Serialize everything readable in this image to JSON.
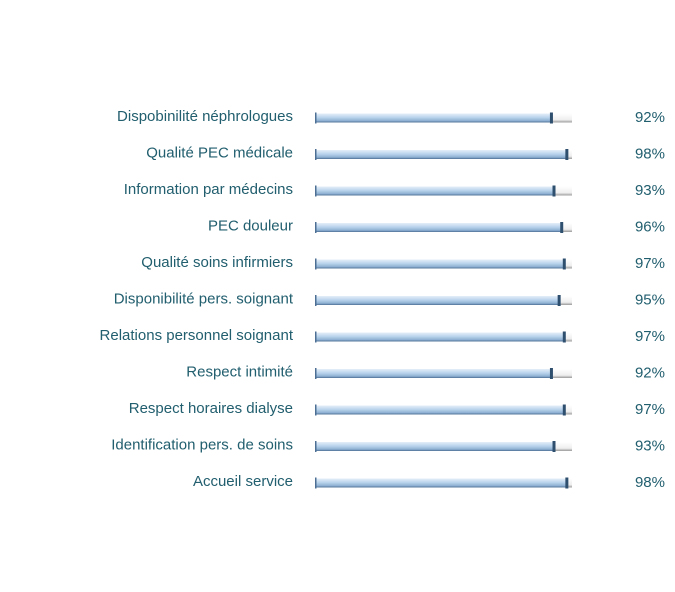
{
  "chart_data": {
    "type": "hbar",
    "categories": [
      "Dispobinilité néphrologues",
      "Qualité PEC médicale",
      "Information par médecins",
      "PEC douleur",
      "Qualité soins infirmiers",
      "Disponibilité pers. soignant",
      "Relations personnel soignant",
      "Respect intimité",
      "Respect horaires dialyse",
      "Identification pers. de soins",
      "Accueil service"
    ],
    "values": [
      92,
      98,
      93,
      96,
      97,
      95,
      97,
      92,
      97,
      93,
      98
    ],
    "value_labels": [
      "92%",
      "98%",
      "93%",
      "96%",
      "97%",
      "95%",
      "97%",
      "92%",
      "97%",
      "93%",
      "98%"
    ],
    "color": "#a9c8e6",
    "xlim": [
      0,
      100
    ]
  }
}
